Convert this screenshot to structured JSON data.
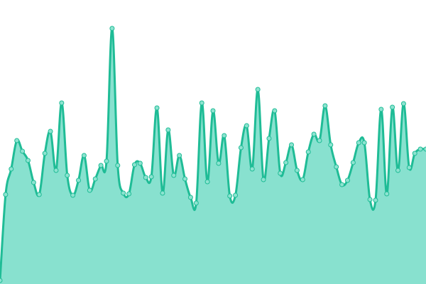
{
  "chart_data": {
    "type": "area",
    "values": [
      5,
      126,
      162,
      202,
      187,
      174,
      143,
      126,
      184,
      215,
      160,
      255,
      153,
      125,
      146,
      181,
      132,
      148,
      167,
      173,
      360,
      167,
      128,
      127,
      168,
      170,
      150,
      151,
      248,
      128,
      217,
      153,
      181,
      148,
      122,
      114,
      255,
      144,
      244,
      170,
      209,
      124,
      125,
      192,
      223,
      162,
      274,
      147,
      205,
      244,
      156,
      171,
      196,
      160,
      147,
      186,
      211,
      202,
      251,
      196,
      165,
      140,
      146,
      171,
      199,
      199,
      119,
      118,
      246,
      127,
      249,
      160,
      254,
      164,
      184,
      190,
      190
    ],
    "ylim": [
      0,
      400
    ],
    "color": "#1fbc96",
    "fill_color": "#88e1cf",
    "marker_color": "#8de3d0"
  }
}
